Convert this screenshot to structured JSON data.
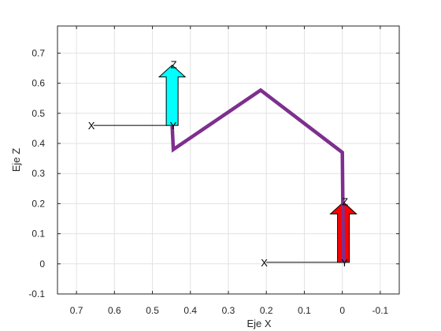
{
  "chart_data": {
    "type": "line",
    "title": "",
    "xlabel": "Eje X",
    "ylabel": "Eje Z",
    "xlim": [
      0.75,
      -0.15
    ],
    "ylim": [
      -0.1,
      0.79
    ],
    "x_reversed": true,
    "grid": true,
    "x_ticks": [
      "0.7",
      "0.6",
      "0.5",
      "0.4",
      "0.3",
      "0.2",
      "0.1",
      "0",
      "-0.1"
    ],
    "y_ticks": [
      "-0.1",
      "0",
      "0.1",
      "0.2",
      "0.3",
      "0.4",
      "0.5",
      "0.6",
      "0.7"
    ],
    "series": [
      {
        "color": "#7e2f8e",
        "points": [
          {
            "x": 0.448,
            "z": 0.46
          },
          {
            "x": 0.445,
            "z": 0.38
          },
          {
            "x": 0.215,
            "z": 0.577
          },
          {
            "x": 0.0,
            "z": 0.37
          },
          {
            "x": -0.003,
            "z": 0.005
          }
        ]
      }
    ],
    "frames": [
      {
        "origin": {
          "x": 0.448,
          "z": 0.46
        },
        "x_axis_end": {
          "x": 0.655
        },
        "z_arrow_top": 0.66,
        "arrow_color": "#00ffff",
        "x_label": "X",
        "y_label": "Y",
        "z_label": "Z"
      },
      {
        "origin": {
          "x": -0.003,
          "z": 0.005
        },
        "x_axis_end": {
          "x": 0.2
        },
        "z_arrow_top": 0.205,
        "arrow_color": "#ff0000",
        "x_label": "X",
        "y_label": "Y",
        "z_label": "Z"
      }
    ]
  }
}
